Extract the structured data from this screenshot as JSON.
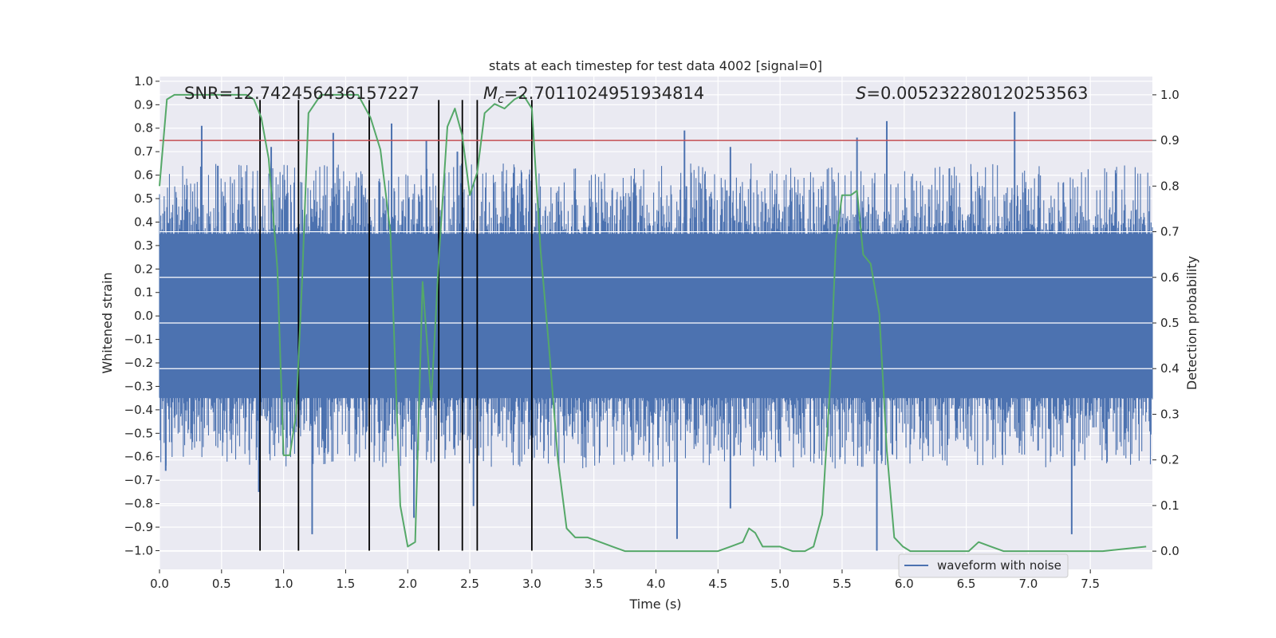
{
  "chart_data": {
    "type": "line",
    "title": "stats at each timestep for test data 4002 [signal=0]",
    "xlabel": "Time (s)",
    "ylabel_left": "Whitened strain",
    "ylabel_right": "Detection probability",
    "xlim": [
      0,
      8
    ],
    "ylim_left": [
      -1.08,
      1.02
    ],
    "ylim_right": [
      -0.04,
      1.04
    ],
    "x_ticks": [
      0.0,
      0.5,
      1.0,
      1.5,
      2.0,
      2.5,
      3.0,
      3.5,
      4.0,
      4.5,
      5.0,
      5.5,
      6.0,
      6.5,
      7.0,
      7.5
    ],
    "x_tick_labels": [
      "0.0",
      "0.5",
      "1.0",
      "1.5",
      "2.0",
      "2.5",
      "3.0",
      "3.5",
      "4.0",
      "4.5",
      "5.0",
      "5.5",
      "6.0",
      "6.5",
      "7.0",
      "7.5"
    ],
    "y_left_ticks": [
      1.0,
      0.9,
      0.8,
      0.7,
      0.6,
      0.5,
      0.4,
      0.3,
      0.2,
      0.1,
      0.0,
      -0.1,
      -0.2,
      -0.3,
      -0.4,
      -0.5,
      -0.6,
      -0.7,
      -0.8,
      -0.9,
      -1.0
    ],
    "y_left_tick_labels": [
      "1.0",
      "0.9",
      "0.8",
      "0.7",
      "0.6",
      "0.5",
      "0.4",
      "0.3",
      "0.2",
      "0.1",
      "0.0",
      "−0.1",
      "−0.2",
      "−0.3",
      "−0.4",
      "−0.5",
      "−0.6",
      "−0.7",
      "−0.8",
      "−0.9",
      "−1.0"
    ],
    "y_right_ticks": [
      1.0,
      0.9,
      0.8,
      0.7,
      0.6,
      0.5,
      0.4,
      0.3,
      0.2,
      0.1,
      0.0
    ],
    "y_right_tick_labels": [
      "1.0",
      "0.9",
      "0.8",
      "0.7",
      "0.6",
      "0.5",
      "0.4",
      "0.3",
      "0.2",
      "0.1",
      "0.0"
    ],
    "annotations": {
      "snr": "SNR=12.742456436157227",
      "mc_symbol": "M",
      "mc_sub": "c",
      "mc_value": "=2.7011024951934814",
      "s_symbol": "S",
      "s_value": "=0.005232280120253563"
    },
    "threshold": {
      "value": 0.9,
      "axis": "right",
      "color": "#c44e52"
    },
    "vertical_markers": {
      "x": [
        0.81,
        1.12,
        1.69,
        2.25,
        2.44,
        2.56,
        3.0
      ],
      "y_from": -1.0,
      "y_to": 0.92,
      "color": "#000000"
    },
    "series": [
      {
        "name": "waveform with noise",
        "axis": "left",
        "color": "#4c72b0",
        "description": "dense whitened strain noise, bulk within about ±0.35 with spikes reaching about ±0.9",
        "band_range": [
          -0.35,
          0.35
        ],
        "peaks": [
          {
            "x": 0.34,
            "y": 0.81
          },
          {
            "x": 0.47,
            "y": 0.64
          },
          {
            "x": 0.9,
            "y": 0.72
          },
          {
            "x": 1.4,
            "y": 0.78
          },
          {
            "x": 1.87,
            "y": 0.82
          },
          {
            "x": 2.15,
            "y": 0.75
          },
          {
            "x": 2.4,
            "y": 0.7
          },
          {
            "x": 4.23,
            "y": 0.79
          },
          {
            "x": 4.6,
            "y": 0.72
          },
          {
            "x": 5.62,
            "y": 0.76
          },
          {
            "x": 5.86,
            "y": 0.83
          },
          {
            "x": 6.89,
            "y": 0.87
          }
        ],
        "troughs": [
          {
            "x": 0.05,
            "y": -0.66
          },
          {
            "x": 0.8,
            "y": -0.75
          },
          {
            "x": 1.23,
            "y": -0.93
          },
          {
            "x": 2.05,
            "y": -0.86
          },
          {
            "x": 2.53,
            "y": -0.81
          },
          {
            "x": 4.17,
            "y": -0.95
          },
          {
            "x": 4.6,
            "y": -0.82
          },
          {
            "x": 5.78,
            "y": -1.0
          },
          {
            "x": 7.35,
            "y": -0.93
          }
        ]
      },
      {
        "name": "detection probability",
        "axis": "right",
        "color": "#55a868",
        "x": [
          0.0,
          0.06,
          0.12,
          0.3,
          0.5,
          0.7,
          0.76,
          0.82,
          0.88,
          0.95,
          1.0,
          1.05,
          1.1,
          1.15,
          1.2,
          1.3,
          1.45,
          1.6,
          1.7,
          1.78,
          1.86,
          1.94,
          2.0,
          2.06,
          2.12,
          2.19,
          2.25,
          2.32,
          2.38,
          2.44,
          2.5,
          2.56,
          2.62,
          2.7,
          2.78,
          2.86,
          2.93,
          3.0,
          3.07,
          3.14,
          3.21,
          3.28,
          3.35,
          3.45,
          3.55,
          3.65,
          3.75,
          3.85,
          4.0,
          4.2,
          4.5,
          4.6,
          4.7,
          4.75,
          4.8,
          4.86,
          4.92,
          5.0,
          5.1,
          5.2,
          5.27,
          5.34,
          5.4,
          5.45,
          5.5,
          5.57,
          5.62,
          5.67,
          5.73,
          5.8,
          5.86,
          5.92,
          5.99,
          6.05,
          6.15,
          6.3,
          6.45,
          6.52,
          6.6,
          6.7,
          6.8,
          6.9,
          7.0,
          7.3,
          7.6,
          7.95
        ],
        "y": [
          0.8,
          0.99,
          1.0,
          1.0,
          1.0,
          1.0,
          0.99,
          0.95,
          0.86,
          0.62,
          0.21,
          0.21,
          0.3,
          0.6,
          0.96,
          1.0,
          1.0,
          1.0,
          0.95,
          0.88,
          0.7,
          0.1,
          0.01,
          0.02,
          0.59,
          0.33,
          0.64,
          0.93,
          0.97,
          0.91,
          0.78,
          0.83,
          0.96,
          0.98,
          0.97,
          0.99,
          1.0,
          0.97,
          0.66,
          0.44,
          0.2,
          0.05,
          0.03,
          0.03,
          0.02,
          0.01,
          0.0,
          0.0,
          0.0,
          0.0,
          0.0,
          0.01,
          0.02,
          0.05,
          0.04,
          0.01,
          0.01,
          0.01,
          0.0,
          0.0,
          0.01,
          0.08,
          0.35,
          0.68,
          0.78,
          0.78,
          0.79,
          0.65,
          0.63,
          0.52,
          0.22,
          0.03,
          0.01,
          0.0,
          0.0,
          0.0,
          0.0,
          0.0,
          0.02,
          0.01,
          0.0,
          0.0,
          0.0,
          0.0,
          0.0,
          0.01
        ]
      }
    ],
    "legend": {
      "location": "lower-right",
      "entries": [
        "waveform with noise"
      ]
    },
    "grid": true
  }
}
